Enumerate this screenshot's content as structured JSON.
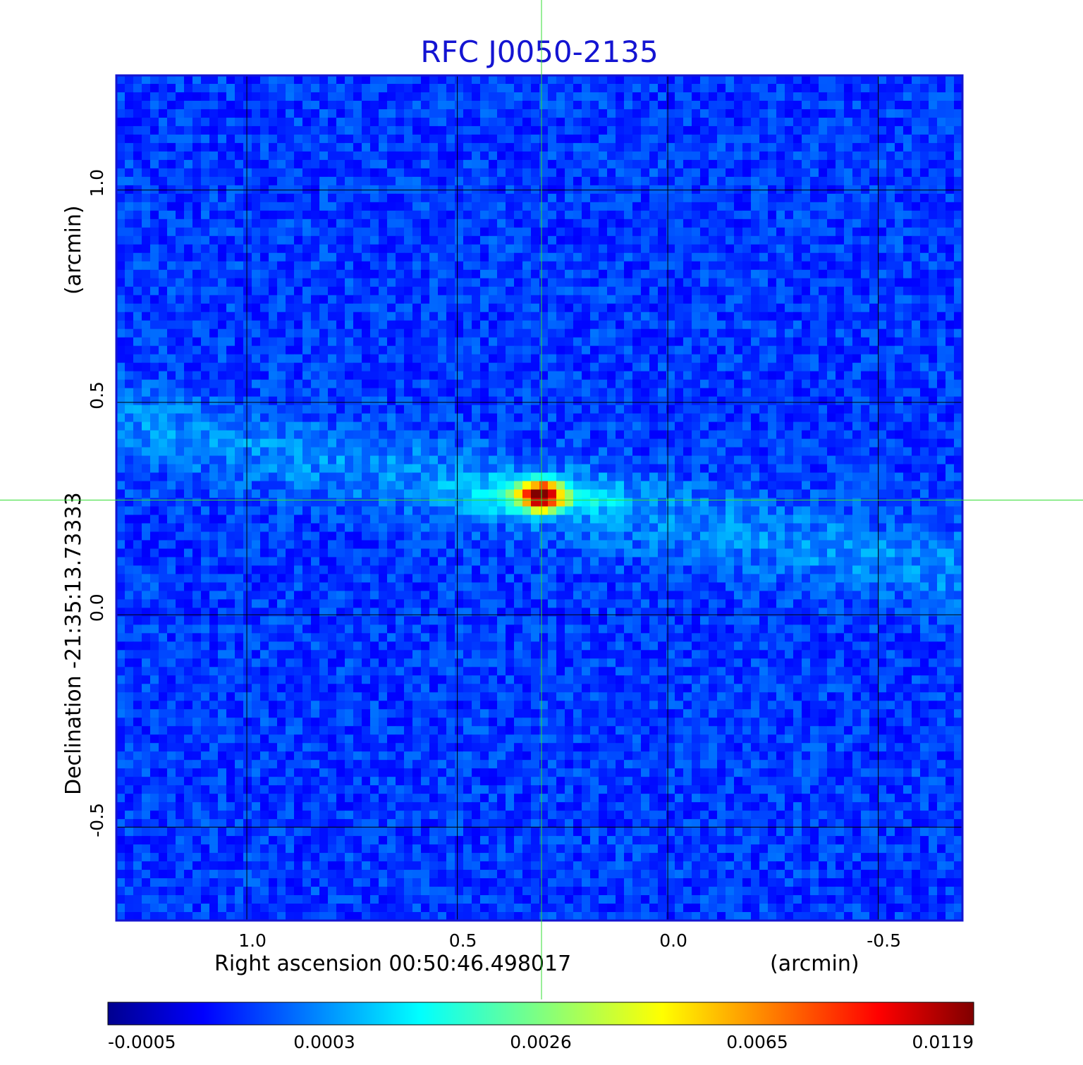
{
  "chart_data": {
    "type": "heatmap",
    "title": "RFC J0050-2135",
    "xlabel": "Right ascension  00:50:46.498017",
    "xunit": "(arcmin)",
    "ylabel": "Declination  -21:35:13.73333",
    "yunit": "(arcmin)",
    "x_range": [
      1.31,
      -0.7
    ],
    "y_range": [
      -0.72,
      1.27
    ],
    "x_ticks": [
      1.0,
      0.5,
      0.0,
      -0.5
    ],
    "x_tick_labels": [
      "1.0",
      "0.5",
      "0.0",
      "-0.5"
    ],
    "y_ticks": [
      1.0,
      0.5,
      0.0,
      -0.5
    ],
    "y_tick_labels": [
      "1.0",
      "0.5",
      "0.0",
      "-0.5"
    ],
    "grid": true,
    "crosshair": {
      "x": 0.3,
      "y": 0.27,
      "color": "#33dd33"
    },
    "colorscale": "jet",
    "colorbar": {
      "tick_labels": [
        "-0.0005",
        "0.0003",
        "0.0026",
        "0.0065",
        "0.0119"
      ],
      "min": -0.0005,
      "max": 0.0119
    },
    "features": [
      {
        "kind": "peak",
        "x": 0.3,
        "y": 0.28,
        "value": 0.0119
      },
      {
        "kind": "diffuse_band",
        "from_x": 1.31,
        "from_y": 0.45,
        "to_x": -0.7,
        "to_y": 0.1,
        "value": 0.0006
      }
    ]
  }
}
